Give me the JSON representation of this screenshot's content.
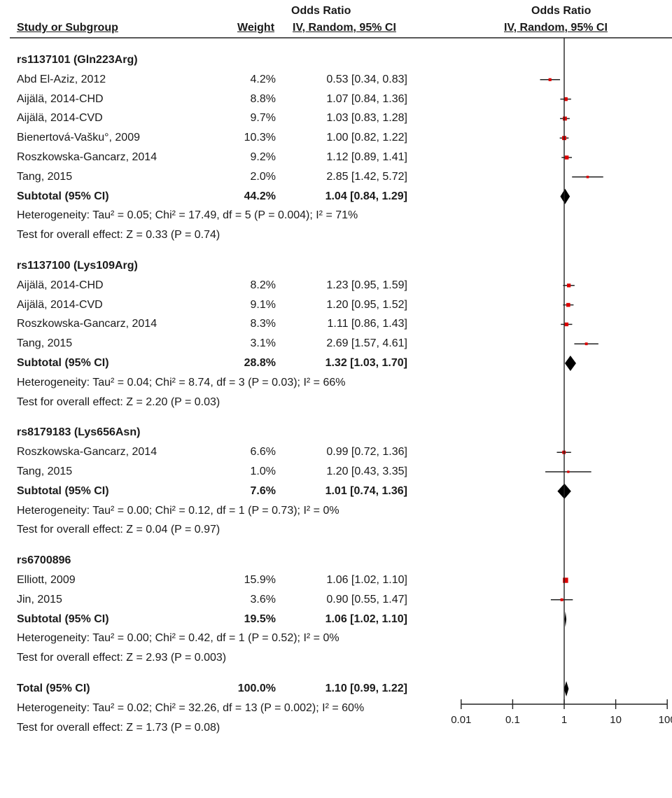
{
  "header": {
    "study_col": "Study or Subgroup",
    "weight_col": "Weight",
    "or_top": "Odds Ratio",
    "or_sub": "IV, Random, 95% CI",
    "plot_top": "Odds Ratio",
    "plot_sub": "IV, Random, 95% CI"
  },
  "chart_data": {
    "type": "forest",
    "x_scale": "log",
    "xlim": [
      0.01,
      100
    ],
    "x_ticks": [
      "0.01",
      "0.1",
      "1",
      "10",
      "100"
    ],
    "x_tick_values": [
      0.01,
      0.1,
      1,
      10,
      100
    ],
    "null_line": 1,
    "marker_color": "#dd0000",
    "diamond_color": "#000000",
    "subgroups": [
      {
        "name": "rs1137101 (Gln223Arg)",
        "studies": [
          {
            "study": "Abd El-Aziz, 2012",
            "weight": "4.2%",
            "ci_text": "0.53 [0.34, 0.83]",
            "or": 0.53,
            "lo": 0.34,
            "hi": 0.83
          },
          {
            "study": "Aijälä, 2014-CHD",
            "weight": "8.8%",
            "ci_text": "1.07 [0.84, 1.36]",
            "or": 1.07,
            "lo": 0.84,
            "hi": 1.36
          },
          {
            "study": "Aijälä, 2014-CVD",
            "weight": "9.7%",
            "ci_text": "1.03 [0.83, 1.28]",
            "or": 1.03,
            "lo": 0.83,
            "hi": 1.28
          },
          {
            "study": "Bienertová-Vašku°, 2009",
            "weight": "10.3%",
            "ci_text": "1.00 [0.82, 1.22]",
            "or": 1.0,
            "lo": 0.82,
            "hi": 1.22
          },
          {
            "study": "Roszkowska-Gancarz, 2014",
            "weight": "9.2%",
            "ci_text": "1.12 [0.89, 1.41]",
            "or": 1.12,
            "lo": 0.89,
            "hi": 1.41
          },
          {
            "study": "Tang, 2015",
            "weight": "2.0%",
            "ci_text": "2.85 [1.42, 5.72]",
            "or": 2.85,
            "lo": 1.42,
            "hi": 5.72
          }
        ],
        "subtotal": {
          "label": "Subtotal (95% CI)",
          "weight": "44.2%",
          "ci_text": "1.04 [0.84, 1.29]",
          "or": 1.04,
          "lo": 0.84,
          "hi": 1.29
        },
        "heterogeneity": "Heterogeneity: Tau² = 0.05; Chi² = 17.49, df = 5 (P = 0.004); I² = 71%",
        "overall": "Test for overall effect: Z = 0.33 (P = 0.74)"
      },
      {
        "name": "rs1137100 (Lys109Arg)",
        "studies": [
          {
            "study": "Aijälä, 2014-CHD",
            "weight": "8.2%",
            "ci_text": "1.23 [0.95, 1.59]",
            "or": 1.23,
            "lo": 0.95,
            "hi": 1.59
          },
          {
            "study": "Aijälä, 2014-CVD",
            "weight": "9.1%",
            "ci_text": "1.20 [0.95, 1.52]",
            "or": 1.2,
            "lo": 0.95,
            "hi": 1.52
          },
          {
            "study": "Roszkowska-Gancarz, 2014",
            "weight": "8.3%",
            "ci_text": "1.11 [0.86, 1.43]",
            "or": 1.11,
            "lo": 0.86,
            "hi": 1.43
          },
          {
            "study": "Tang, 2015",
            "weight": "3.1%",
            "ci_text": "2.69 [1.57, 4.61]",
            "or": 2.69,
            "lo": 1.57,
            "hi": 4.61
          }
        ],
        "subtotal": {
          "label": "Subtotal (95% CI)",
          "weight": "28.8%",
          "ci_text": "1.32 [1.03, 1.70]",
          "or": 1.32,
          "lo": 1.03,
          "hi": 1.7
        },
        "heterogeneity": "Heterogeneity: Tau² = 0.04; Chi² = 8.74, df = 3 (P = 0.03); I² = 66%",
        "overall": "Test for overall effect: Z = 2.20 (P = 0.03)"
      },
      {
        "name": "rs8179183 (Lys656Asn)",
        "studies": [
          {
            "study": "Roszkowska-Gancarz, 2014",
            "weight": "6.6%",
            "ci_text": "0.99 [0.72, 1.36]",
            "or": 0.99,
            "lo": 0.72,
            "hi": 1.36
          },
          {
            "study": "Tang, 2015",
            "weight": "1.0%",
            "ci_text": "1.20 [0.43, 3.35]",
            "or": 1.2,
            "lo": 0.43,
            "hi": 3.35
          }
        ],
        "subtotal": {
          "label": "Subtotal (95% CI)",
          "weight": "7.6%",
          "ci_text": "1.01 [0.74, 1.36]",
          "or": 1.01,
          "lo": 0.74,
          "hi": 1.36
        },
        "heterogeneity": "Heterogeneity: Tau² = 0.00; Chi² = 0.12, df = 1 (P = 0.73); I² = 0%",
        "overall": "Test for overall effect: Z = 0.04 (P = 0.97)"
      },
      {
        "name": "rs6700896",
        "studies": [
          {
            "study": "Elliott, 2009",
            "weight": "15.9%",
            "ci_text": "1.06 [1.02, 1.10]",
            "or": 1.06,
            "lo": 1.02,
            "hi": 1.1
          },
          {
            "study": "Jin, 2015",
            "weight": "3.6%",
            "ci_text": "0.90 [0.55, 1.47]",
            "or": 0.9,
            "lo": 0.55,
            "hi": 1.47
          }
        ],
        "subtotal": {
          "label": "Subtotal (95% CI)",
          "weight": "19.5%",
          "ci_text": "1.06 [1.02, 1.10]",
          "or": 1.06,
          "lo": 1.02,
          "hi": 1.1
        },
        "heterogeneity": "Heterogeneity: Tau² = 0.00; Chi² = 0.42, df = 1 (P = 0.52); I² = 0%",
        "overall": "Test for overall effect: Z = 2.93 (P = 0.003)"
      }
    ],
    "total": {
      "label": "Total (95% CI)",
      "weight": "100.0%",
      "ci_text": "1.10 [0.99, 1.22]",
      "or": 1.1,
      "lo": 0.99,
      "hi": 1.22,
      "heterogeneity": "Heterogeneity: Tau² = 0.02; Chi² = 32.26, df = 13 (P = 0.002); I² = 60%",
      "overall": "Test for overall effect: Z = 1.73 (P = 0.08)"
    }
  }
}
